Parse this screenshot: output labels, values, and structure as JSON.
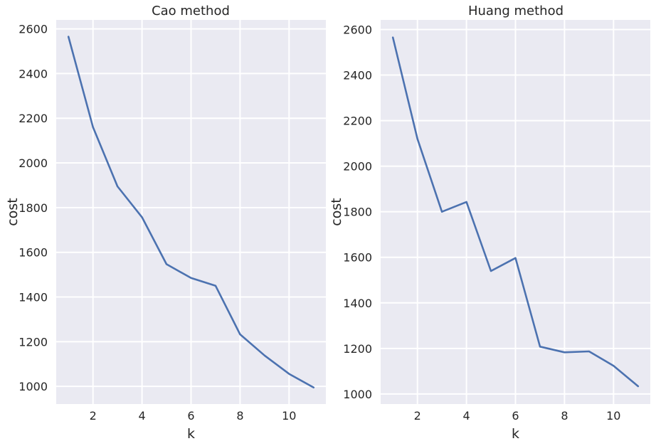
{
  "chart_data": [
    {
      "type": "line",
      "title": "Cao method",
      "xlabel": "k",
      "ylabel": "cost",
      "x": [
        1,
        2,
        3,
        4,
        5,
        6,
        7,
        8,
        9,
        10,
        11
      ],
      "series": [
        {
          "values": [
            2565,
            2160,
            1895,
            1757,
            1547,
            1485,
            1450,
            1233,
            1138,
            1056,
            995
          ]
        }
      ],
      "xticks": [
        2,
        4,
        6,
        8,
        10
      ],
      "yticks": [
        1000,
        1200,
        1400,
        1600,
        1800,
        2000,
        2200,
        2400,
        2600
      ],
      "xlim": [
        0.5,
        11.5
      ],
      "ylim": [
        921,
        2640
      ],
      "grid": true,
      "color": "#4c72b0"
    },
    {
      "type": "line",
      "title": "Huang method",
      "xlabel": "k",
      "ylabel": "cost",
      "x": [
        1,
        2,
        3,
        4,
        5,
        6,
        7,
        8,
        9,
        10,
        11
      ],
      "series": [
        {
          "values": [
            2565,
            2120,
            1800,
            1843,
            1540,
            1597,
            1208,
            1183,
            1187,
            1124,
            1034
          ]
        }
      ],
      "xticks": [
        2,
        4,
        6,
        8,
        10
      ],
      "yticks": [
        1000,
        1200,
        1400,
        1600,
        1800,
        2000,
        2200,
        2400,
        2600
      ],
      "xlim": [
        0.5,
        11.5
      ],
      "ylim": [
        956,
        2642
      ],
      "grid": true,
      "color": "#4c72b0"
    }
  ]
}
